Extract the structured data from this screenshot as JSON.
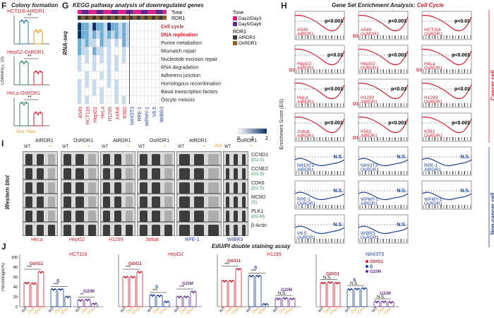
{
  "panelF": {
    "letter": "F",
    "title": "Colony formation",
    "ylabel": "Colonies(×10)",
    "sig": "**",
    "xlabels": [
      "-Dox",
      "+Dox"
    ],
    "subplots": [
      {
        "label": "HCT116-AtRDR1",
        "colors": [
          "#2c7bb6",
          "#e49a1c"
        ]
      },
      {
        "label": "HepG2-OsRDR1",
        "colors": [
          "#2e8b57",
          "#d0202e"
        ]
      },
      {
        "label": "HeLa-OsRDR1",
        "colors": [
          "#2e8b57",
          "#d0202e"
        ]
      }
    ]
  },
  "panelG": {
    "letter": "G",
    "title": "KEGG pathway analysis of downregulated genes",
    "side": "RNA-seq",
    "legend": {
      "time_title": "Time",
      "time_items": [
        {
          "label": "Day2/Day3",
          "color": "#e0208c"
        },
        {
          "label": "Day5/Day6",
          "color": "#5b2a86"
        }
      ],
      "rdr_title": "RDR1",
      "rdr_items": [
        {
          "label": "AtRDR1",
          "color": "#3b3b3b"
        },
        {
          "label": "OsRDR1",
          "color": "#8b5a2b"
        }
      ],
      "scale_ticks": [
        "0",
        "1",
        "2"
      ]
    },
    "row_labels": [
      "Time",
      "RDR1"
    ],
    "pathways": [
      "Cell cycle",
      "DNA replication",
      "Purine metabolism",
      "Mismatch repair",
      "Nucleotide excision repair",
      "RNA degradation",
      "Adherens junction",
      "Homologous recombination",
      "Basal transcription factors",
      "Oocyte meiosis"
    ],
    "highlight_pathways": [
      "Cell cycle",
      "DNA replication"
    ],
    "cancer_cols": [
      "A549",
      "HCT116",
      "HepG2",
      "HeLa",
      "H1299",
      "Jurkat",
      "K562"
    ],
    "noncancer_cols": [
      "NIH/3T3",
      "RPE-1",
      "WPMY-1",
      "V6.5",
      "WIBR3"
    ]
  },
  "panelH": {
    "letter": "H",
    "title": "Gene Set Enrichment Analysis:",
    "title_em": "Cell Cycle",
    "ylabel": "Enrichment Score (ES)",
    "cancer_label": "Cancer cell",
    "noncancer_label": "Non-cancer cell",
    "cells": [
      {
        "l1": "A549",
        "l2": "AtRDR1",
        "p": "p<0.001",
        "d": "",
        "cancer": true
      },
      {
        "l1": "A549",
        "l2": "OsRDR1",
        "p": "p<0.001",
        "d": "D3 D6",
        "cancer": true
      },
      {
        "l1": "HCT116",
        "l2": "OsRDR1",
        "p": "p<0.01",
        "d": "",
        "cancer": true
      },
      {
        "l1": "HepG2",
        "l2": "AtRDR1",
        "p": "p<0.01",
        "d": "D2 D6",
        "cancer": true
      },
      {
        "l1": "HepG2",
        "l2": "OsRDR1",
        "p": "p<0.001",
        "d": "",
        "cancer": true
      },
      {
        "l1": "HeLa",
        "l2": "OsRDR1",
        "p": "p<0.001",
        "d": "D3 D6",
        "cancer": true
      },
      {
        "l1": "HeLa",
        "l2": "AtRDR1",
        "p": "p<0.001",
        "d": "",
        "cancer": true
      },
      {
        "l1": "H1299",
        "l2": "AtRDR1",
        "p": "p<0.01",
        "d": "D3 D6",
        "cancer": true
      },
      {
        "l1": "H1299",
        "l2": "OsRDR1",
        "p": "p<0.01",
        "d": "",
        "cancer": true
      },
      {
        "l1": "Jurkat",
        "l2": "AtRDR1",
        "p": "p<0.001",
        "d": "",
        "cancer": true
      },
      {
        "l1": "K562",
        "l2": "AtRDR1",
        "p": "p<0.001",
        "d": "D3 D6",
        "cancer": true
      },
      {
        "l1": "K562",
        "l2": "OsRDR1",
        "p": "p<0.001",
        "d": "",
        "cancer": true
      },
      {
        "l1": "NIH/3T3",
        "l2": "AtRDR1",
        "p": "N.S.",
        "d": "",
        "cancer": false
      },
      {
        "l1": "NIH/3T3",
        "l2": "OsRDR1",
        "p": "N.S.",
        "d": "",
        "cancer": false
      },
      {
        "l1": "RPE-1",
        "l2": "AtRDR1",
        "p": "N.S.",
        "d": "",
        "cancer": false
      },
      {
        "l1": "RPE-1",
        "l2": "OsRDR1",
        "p": "N.S.",
        "d": "",
        "cancer": false
      },
      {
        "l1": "WPMY-1",
        "l2": "AtRDR1",
        "p": "N.S.",
        "d": "",
        "cancer": false
      },
      {
        "l1": "WPMY-1",
        "l2": "OsRDR1",
        "p": "N.S.",
        "d": "",
        "cancer": false
      },
      {
        "l1": "V6.5",
        "l2": "OsRDR1",
        "p": "N.S.",
        "d": "",
        "cancer": false
      },
      {
        "l1": "WIBR3",
        "l2": "OsRDR1",
        "p": "N.S.",
        "d": "",
        "cancer": false
      }
    ]
  },
  "panelI": {
    "letter": "I",
    "side": "Western blot",
    "dox": "Dox",
    "group_headers": [
      "AtRDR1",
      "OsRDR1",
      "AtRDR1",
      "OsRDR1",
      "AtRDR1",
      "OsRDR1"
    ],
    "wt": "WT",
    "cells": [
      "HeLa",
      "HepG2",
      "H1299",
      "Jurkat",
      "RPE-1",
      "WIBR3"
    ],
    "right_header": "OsRDR1",
    "proteins": [
      {
        "name": "CCND1",
        "phase": "(G1-S)"
      },
      {
        "name": "CCNE2",
        "phase": "(G1-S)"
      },
      {
        "name": "CDK6",
        "phase": "(G1-S)"
      },
      {
        "name": "MCM2",
        "phase": "(S)"
      },
      {
        "name": "PLK1",
        "phase": "(G2-M)"
      },
      {
        "name": "β-Actin",
        "phase": ""
      }
    ]
  },
  "panelJ": {
    "letter": "J",
    "title": "EdU/PI double staining assay",
    "ylabel": "Percentage(%)",
    "yticks": [
      "0",
      "20",
      "40",
      "60",
      "80",
      "100"
    ],
    "xlabels": [
      "WT",
      "-Dox",
      "+Dox"
    ],
    "phase_colors": {
      "G0/G1": "#d0202e",
      "S": "#1c3f94",
      "G2/M": "#6a2d91"
    },
    "charts": [
      {
        "cell": "HCT116",
        "g1": [
          48,
          47,
          70
        ],
        "s": [
          35,
          35,
          20
        ],
        "g2": [
          13,
          14,
          6
        ],
        "sig": [
          "***",
          "***",
          "**"
        ]
      },
      {
        "cell": "HepG2",
        "g1": [
          60,
          60,
          70
        ],
        "s": [
          23,
          22,
          10
        ],
        "g2": [
          20,
          20,
          30
        ],
        "sig": [
          "***",
          "***",
          "***"
        ]
      },
      {
        "cell": "H1299",
        "g1": [
          52,
          52,
          76
        ],
        "s": [
          62,
          62,
          5
        ],
        "g2": [
          16,
          17,
          16
        ],
        "sig": [
          "***",
          "***",
          "N.S."
        ]
      },
      {
        "cell": "NIH/3T3",
        "g1": [
          48,
          49,
          48
        ],
        "s": [
          35,
          36,
          37
        ],
        "g2": [
          10,
          10,
          9
        ],
        "sig": [
          "N.S.",
          "N.S.",
          "N.S."
        ]
      }
    ],
    "legend": [
      "G0/G1",
      "S",
      "G2/M"
    ]
  }
}
